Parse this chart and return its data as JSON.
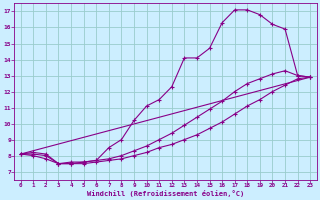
{
  "xlabel": "Windchill (Refroidissement éolien,°C)",
  "background_color": "#cceeff",
  "line_color": "#880088",
  "grid_color": "#99cccc",
  "xlim": [
    -0.5,
    23.5
  ],
  "ylim": [
    6.5,
    17.5
  ],
  "xticks": [
    0,
    1,
    2,
    3,
    4,
    5,
    6,
    7,
    8,
    9,
    10,
    11,
    12,
    13,
    14,
    15,
    16,
    17,
    18,
    19,
    20,
    21,
    22,
    23
  ],
  "yticks": [
    7,
    8,
    9,
    10,
    11,
    12,
    13,
    14,
    15,
    16,
    17
  ],
  "line1_x": [
    0,
    1,
    2,
    3,
    4,
    5,
    6,
    7,
    8,
    9,
    10,
    11,
    12,
    13,
    14,
    15,
    16,
    17,
    18,
    19,
    20,
    21,
    22,
    23
  ],
  "line1_y": [
    8.1,
    8.2,
    8.1,
    7.5,
    7.5,
    7.6,
    7.7,
    8.5,
    9.0,
    10.2,
    11.1,
    11.5,
    12.3,
    14.1,
    14.1,
    14.7,
    16.3,
    17.1,
    17.1,
    16.8,
    16.2,
    15.9,
    13.0,
    12.9
  ],
  "line2_x": [
    0,
    1,
    2,
    3,
    4,
    5,
    6,
    7,
    8,
    9,
    10,
    11,
    12,
    13,
    14,
    15,
    16,
    17,
    18,
    19,
    20,
    21,
    22,
    23
  ],
  "line2_y": [
    8.1,
    8.1,
    8.0,
    7.5,
    7.6,
    7.6,
    7.7,
    7.8,
    8.0,
    8.3,
    8.6,
    9.0,
    9.4,
    9.9,
    10.4,
    10.9,
    11.4,
    12.0,
    12.5,
    12.8,
    13.1,
    13.3,
    13.0,
    12.9
  ],
  "line3_x": [
    0,
    23
  ],
  "line3_y": [
    8.1,
    12.9
  ],
  "line4_x": [
    0,
    1,
    2,
    3,
    4,
    5,
    6,
    7,
    8,
    9,
    10,
    11,
    12,
    13,
    14,
    15,
    16,
    17,
    18,
    19,
    20,
    21,
    22,
    23
  ],
  "line4_y": [
    8.1,
    8.0,
    7.8,
    7.5,
    7.5,
    7.5,
    7.6,
    7.7,
    7.8,
    8.0,
    8.2,
    8.5,
    8.7,
    9.0,
    9.3,
    9.7,
    10.1,
    10.6,
    11.1,
    11.5,
    12.0,
    12.4,
    12.8,
    12.9
  ]
}
